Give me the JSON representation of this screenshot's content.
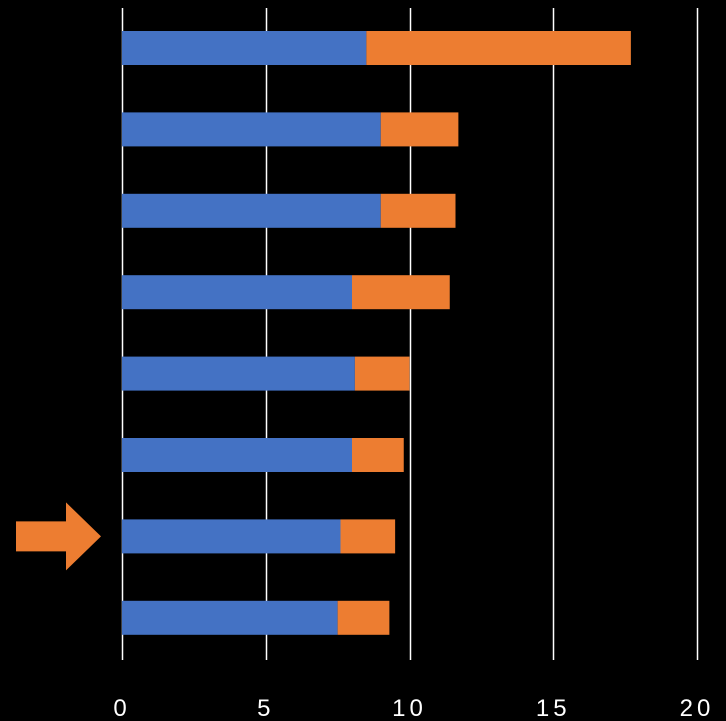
{
  "chart_data": {
    "type": "bar",
    "orientation": "horizontal",
    "stacked": true,
    "categories": [
      "",
      "",
      "",
      "",
      "",
      "",
      "",
      ""
    ],
    "series": [
      {
        "color": "#4472c4",
        "values": [
          8.5,
          9.0,
          9.0,
          8.0,
          8.1,
          8.0,
          7.6,
          7.5
        ]
      },
      {
        "color": "#ed7d31",
        "values": [
          9.2,
          2.7,
          2.6,
          3.4,
          1.9,
          1.8,
          1.9,
          1.8
        ]
      }
    ],
    "xlim": [
      0,
      20
    ],
    "xticks": [
      "0",
      "5",
      "10",
      "15",
      "20"
    ],
    "grid": "vertical",
    "legend": "none",
    "highlight_marker": {
      "icon": "right-arrow-icon",
      "color": "#ed7d31",
      "category_index": 6
    },
    "background": "#000000",
    "gridline_color": "#ffffff"
  }
}
